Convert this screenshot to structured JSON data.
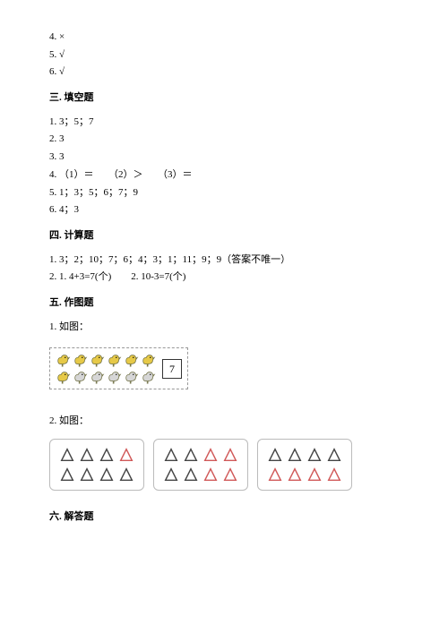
{
  "answers_top": [
    "4. ×",
    "5. √",
    "6. √"
  ],
  "section3": {
    "title": "三. 填空题",
    "lines": [
      "1. 3；5；7",
      "2. 3",
      "3. 3",
      "4. （1）＝　　（2）＞　　（3）＝",
      "5. 1；3；5；6；7；9",
      "6. 4；3"
    ]
  },
  "section4": {
    "title": "四. 计算题",
    "lines": [
      "1. 3；2；10；7；6；4；3；1；11；9；9（答案不唯一）",
      "2. 1. 4+3=7(个)　　2. 10-3=7(个)"
    ]
  },
  "section5": {
    "title": "五. 作图题",
    "fig1_label": "1. 如图：",
    "birds": {
      "cols": 6,
      "rows": 2,
      "colors_row1": [
        "#e6c948",
        "#e6c948",
        "#e6c948",
        "#e6c948",
        "#e6c948",
        "#e6c948"
      ],
      "colors_row2": [
        "#e6c948",
        "#d6d6d6",
        "#d6d6d6",
        "#d6d6d6",
        "#d6d6d6",
        "#d6d6d6"
      ],
      "outline": "#6a6a3c",
      "number_box_value": "7"
    },
    "fig2_label": "2. 如图：",
    "triangle_cards": [
      {
        "pattern": [
          1,
          1,
          1,
          0,
          1,
          1,
          1,
          1
        ],
        "on_color": "#444444",
        "off_color": "#d05858"
      },
      {
        "pattern": [
          1,
          1,
          0,
          0,
          1,
          1,
          0,
          0
        ],
        "on_color": "#444444",
        "off_color": "#d05858"
      },
      {
        "pattern": [
          1,
          1,
          1,
          1,
          0,
          0,
          0,
          0
        ],
        "on_color": "#444444",
        "off_color": "#d05858"
      }
    ],
    "triangle_stroke_width": 1.6
  },
  "section6": {
    "title": "六. 解答题"
  }
}
